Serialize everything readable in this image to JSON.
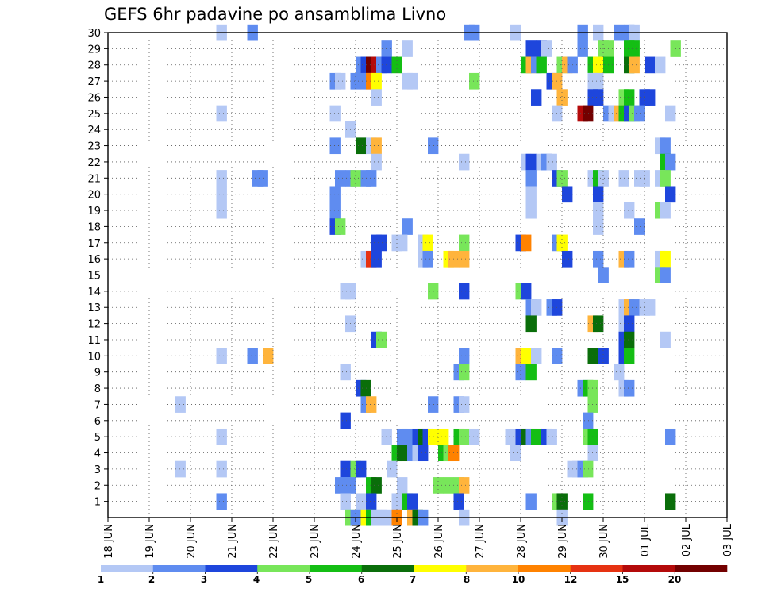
{
  "chart_data": {
    "type": "heatmap",
    "title": "GEFS 6hr padavine po ansamblima Livno",
    "xlabel": "",
    "ylabel": "",
    "x_tick_labels": [
      "18 JUN",
      "19 JUN",
      "20 JUN",
      "21 JUN",
      "22 JUN",
      "23 JUN",
      "24 JUN",
      "25 JUN",
      "26 JUN",
      "27 JUN",
      "28 JUN",
      "29 JUN",
      "30 JUN",
      "01 JUL",
      "02 JUL",
      "03 JUL"
    ],
    "y_tick_labels": [
      "1",
      "2",
      "3",
      "4",
      "5",
      "6",
      "7",
      "8",
      "9",
      "10",
      "11",
      "12",
      "13",
      "14",
      "15",
      "16",
      "17",
      "18",
      "19",
      "20",
      "21",
      "22",
      "23",
      "24",
      "25",
      "26",
      "27",
      "28",
      "29",
      "30"
    ],
    "xlim": [
      "18 JUN",
      "03 JUL"
    ],
    "ylim": [
      0,
      30
    ],
    "grid": true,
    "colorbar_levels": [
      "1",
      "2",
      "3",
      "4",
      "5",
      "6",
      "7",
      "8",
      "10",
      "12",
      "15",
      "20"
    ],
    "colorbar_colors": [
      "#b4c8f5",
      "#5f8cf0",
      "#1e46dc",
      "#78e65a",
      "#14be14",
      "#0a6e0a",
      "#ffff00",
      "#ffb43c",
      "#ff8200",
      "#e63212",
      "#b40a0a",
      "#730000"
    ],
    "cell_level_colors": {
      "1": "#b4c8f5",
      "2": "#5f8cf0",
      "3": "#1e46dc",
      "4": "#78e65a",
      "5": "#14be14",
      "6": "#0a6e0a",
      "7": "#ffff00",
      "8": "#ffb43c",
      "10": "#ff8200",
      "12": "#e63212",
      "15": "#b40a0a",
      "20": "#730000"
    },
    "cells": [
      [
        10.5,
        30,
        1
      ],
      [
        13.5,
        30,
        2
      ],
      [
        34.5,
        30,
        2
      ],
      [
        35,
        30,
        2
      ],
      [
        39,
        30,
        1
      ],
      [
        45.5,
        30,
        2
      ],
      [
        47,
        30,
        1
      ],
      [
        49,
        30,
        2
      ],
      [
        50,
        30,
        2
      ],
      [
        50.5,
        30,
        1
      ],
      [
        26.5,
        29,
        2
      ],
      [
        28.5,
        29,
        1
      ],
      [
        40.5,
        29,
        3
      ],
      [
        41.5,
        29,
        3
      ],
      [
        42,
        29,
        1
      ],
      [
        45.5,
        29,
        2
      ],
      [
        47.5,
        29,
        4
      ],
      [
        48,
        29,
        4
      ],
      [
        50,
        29,
        5
      ],
      [
        50.5,
        29,
        5
      ],
      [
        54.5,
        29,
        4
      ],
      [
        24,
        28,
        2
      ],
      [
        24.5,
        28,
        3
      ],
      [
        25,
        28,
        20
      ],
      [
        25.5,
        28,
        15
      ],
      [
        26,
        28,
        2
      ],
      [
        26.5,
        28,
        3
      ],
      [
        27.5,
        28,
        5
      ],
      [
        40,
        28,
        5
      ],
      [
        40.5,
        28,
        8
      ],
      [
        41,
        28,
        2
      ],
      [
        41.5,
        28,
        5
      ],
      [
        43.5,
        28,
        4
      ],
      [
        44,
        28,
        8
      ],
      [
        44.5,
        28,
        2
      ],
      [
        46.5,
        28,
        5
      ],
      [
        47,
        28,
        7
      ],
      [
        48,
        28,
        5
      ],
      [
        50,
        28,
        6
      ],
      [
        50.5,
        28,
        8
      ],
      [
        52,
        28,
        3
      ],
      [
        53,
        28,
        1
      ],
      [
        21.5,
        27,
        2
      ],
      [
        22,
        27,
        1
      ],
      [
        23.5,
        27,
        2
      ],
      [
        24.5,
        27,
        2
      ],
      [
        25,
        27,
        10
      ],
      [
        25.5,
        27,
        7
      ],
      [
        28.5,
        27,
        1
      ],
      [
        29,
        27,
        1
      ],
      [
        35,
        27,
        4
      ],
      [
        42.5,
        27,
        3
      ],
      [
        43,
        27,
        8
      ],
      [
        46.5,
        27,
        1
      ],
      [
        47,
        27,
        1
      ],
      [
        25.5,
        26,
        1
      ],
      [
        41,
        26,
        3
      ],
      [
        43.5,
        26,
        8
      ],
      [
        46.5,
        26,
        3
      ],
      [
        47,
        26,
        3
      ],
      [
        49.5,
        26,
        4
      ],
      [
        50,
        26,
        5
      ],
      [
        51.5,
        26,
        3
      ],
      [
        52,
        26,
        3
      ],
      [
        10.5,
        25,
        1
      ],
      [
        21.5,
        25,
        1
      ],
      [
        43,
        25,
        1
      ],
      [
        45.5,
        25,
        15
      ],
      [
        46,
        25,
        20
      ],
      [
        48,
        25,
        2
      ],
      [
        48.5,
        25,
        1
      ],
      [
        49,
        25,
        8
      ],
      [
        49.5,
        25,
        5
      ],
      [
        50,
        25,
        3
      ],
      [
        50.5,
        25,
        4
      ],
      [
        51,
        25,
        2
      ],
      [
        54,
        25,
        1
      ],
      [
        23,
        24,
        1
      ],
      [
        21.5,
        23,
        2
      ],
      [
        24,
        23,
        6
      ],
      [
        25,
        23,
        1
      ],
      [
        25.5,
        23,
        8
      ],
      [
        31,
        23,
        2
      ],
      [
        53,
        23,
        1
      ],
      [
        53.5,
        23,
        2
      ],
      [
        25.5,
        22,
        1
      ],
      [
        34,
        22,
        1
      ],
      [
        40,
        22,
        1
      ],
      [
        40.5,
        22,
        3
      ],
      [
        41.5,
        22,
        1
      ],
      [
        42,
        22,
        2
      ],
      [
        42.5,
        22,
        1
      ],
      [
        53.5,
        22,
        5
      ],
      [
        54,
        22,
        2
      ],
      [
        10.5,
        21,
        1
      ],
      [
        14,
        21,
        2
      ],
      [
        14.5,
        21,
        2
      ],
      [
        22,
        21,
        2
      ],
      [
        23,
        21,
        2
      ],
      [
        23.5,
        21,
        4
      ],
      [
        24.5,
        21,
        2
      ],
      [
        25,
        21,
        2
      ],
      [
        40.5,
        21,
        2
      ],
      [
        43,
        21,
        3
      ],
      [
        43.5,
        21,
        4
      ],
      [
        46.5,
        21,
        1
      ],
      [
        47,
        21,
        5
      ],
      [
        47.5,
        21,
        1
      ],
      [
        49.5,
        21,
        1
      ],
      [
        51,
        21,
        1
      ],
      [
        51.5,
        21,
        1
      ],
      [
        53,
        21,
        1
      ],
      [
        53.5,
        21,
        4
      ],
      [
        10.5,
        20,
        1
      ],
      [
        21.5,
        20,
        2
      ],
      [
        40.5,
        20,
        1
      ],
      [
        44,
        20,
        3
      ],
      [
        47,
        20,
        3
      ],
      [
        54,
        20,
        3
      ],
      [
        10.5,
        19,
        1
      ],
      [
        21.5,
        19,
        2
      ],
      [
        40.5,
        19,
        1
      ],
      [
        47,
        19,
        1
      ],
      [
        50,
        19,
        1
      ],
      [
        53,
        19,
        4
      ],
      [
        53.5,
        19,
        1
      ],
      [
        21.5,
        18,
        3
      ],
      [
        22,
        18,
        4
      ],
      [
        28.5,
        18,
        2
      ],
      [
        47,
        18,
        1
      ],
      [
        51,
        18,
        2
      ],
      [
        25.5,
        17,
        3
      ],
      [
        26,
        17,
        3
      ],
      [
        27.5,
        17,
        1
      ],
      [
        28,
        17,
        1
      ],
      [
        30,
        17,
        1
      ],
      [
        30.5,
        17,
        7
      ],
      [
        34,
        17,
        4
      ],
      [
        39.5,
        17,
        3
      ],
      [
        40,
        17,
        10
      ],
      [
        43,
        17,
        2
      ],
      [
        43.5,
        17,
        7
      ],
      [
        24.5,
        16,
        1
      ],
      [
        25,
        16,
        12
      ],
      [
        25.5,
        16,
        3
      ],
      [
        30,
        16,
        1
      ],
      [
        30.5,
        16,
        2
      ],
      [
        32.5,
        16,
        7
      ],
      [
        33,
        16,
        8
      ],
      [
        34,
        16,
        8
      ],
      [
        44,
        16,
        3
      ],
      [
        47,
        16,
        2
      ],
      [
        49.5,
        16,
        8
      ],
      [
        50,
        16,
        2
      ],
      [
        53,
        16,
        1
      ],
      [
        53.5,
        16,
        7
      ],
      [
        47.5,
        15,
        2
      ],
      [
        53,
        15,
        4
      ],
      [
        53.5,
        15,
        2
      ],
      [
        22.5,
        14,
        1
      ],
      [
        23,
        14,
        1
      ],
      [
        31,
        14,
        4
      ],
      [
        34,
        14,
        3
      ],
      [
        39.5,
        14,
        4
      ],
      [
        40,
        14,
        3
      ],
      [
        40.5,
        13,
        2
      ],
      [
        41,
        13,
        1
      ],
      [
        42.5,
        13,
        2
      ],
      [
        43,
        13,
        3
      ],
      [
        49.5,
        13,
        1
      ],
      [
        50,
        13,
        8
      ],
      [
        50.5,
        13,
        2
      ],
      [
        51.5,
        13,
        1
      ],
      [
        52,
        13,
        1
      ],
      [
        23,
        12,
        1
      ],
      [
        40.5,
        12,
        6
      ],
      [
        46.5,
        12,
        8
      ],
      [
        47,
        12,
        6
      ],
      [
        49.5,
        12,
        1
      ],
      [
        50,
        12,
        3
      ],
      [
        25.5,
        11,
        3
      ],
      [
        26,
        11,
        4
      ],
      [
        49.5,
        11,
        3
      ],
      [
        50,
        11,
        6
      ],
      [
        53.5,
        11,
        1
      ],
      [
        10.5,
        10,
        1
      ],
      [
        13.5,
        10,
        2
      ],
      [
        15,
        10,
        8
      ],
      [
        34,
        10,
        2
      ],
      [
        39.5,
        10,
        8
      ],
      [
        40,
        10,
        7
      ],
      [
        41,
        10,
        1
      ],
      [
        43,
        10,
        2
      ],
      [
        46.5,
        10,
        6
      ],
      [
        47.5,
        10,
        3
      ],
      [
        49.5,
        10,
        3
      ],
      [
        50,
        10,
        5
      ],
      [
        22.5,
        9,
        1
      ],
      [
        33.5,
        9,
        2
      ],
      [
        34,
        9,
        4
      ],
      [
        39.5,
        9,
        2
      ],
      [
        40.5,
        9,
        5
      ],
      [
        49,
        9,
        1
      ],
      [
        24,
        8,
        3
      ],
      [
        24.5,
        8,
        6
      ],
      [
        45.5,
        8,
        2
      ],
      [
        46,
        8,
        5
      ],
      [
        46.5,
        8,
        4
      ],
      [
        49.5,
        8,
        1
      ],
      [
        50,
        8,
        2
      ],
      [
        6.5,
        7,
        1
      ],
      [
        24.5,
        7,
        2
      ],
      [
        25,
        7,
        8
      ],
      [
        31,
        7,
        2
      ],
      [
        33.5,
        7,
        2
      ],
      [
        34,
        7,
        1
      ],
      [
        46.5,
        7,
        4
      ],
      [
        22.5,
        6,
        3
      ],
      [
        46,
        6,
        2
      ],
      [
        10.5,
        5,
        1
      ],
      [
        26.5,
        5,
        1
      ],
      [
        28,
        5,
        2
      ],
      [
        28.5,
        5,
        2
      ],
      [
        29.5,
        5,
        3
      ],
      [
        30,
        5,
        6
      ],
      [
        30.5,
        5,
        3
      ],
      [
        31,
        5,
        7
      ],
      [
        32,
        5,
        7
      ],
      [
        33.5,
        5,
        5
      ],
      [
        34,
        5,
        4
      ],
      [
        35,
        5,
        1
      ],
      [
        38.5,
        5,
        1
      ],
      [
        39.5,
        5,
        3
      ],
      [
        40,
        5,
        6
      ],
      [
        40.5,
        5,
        2
      ],
      [
        41,
        5,
        5
      ],
      [
        42,
        5,
        3
      ],
      [
        42.5,
        5,
        1
      ],
      [
        46,
        5,
        4
      ],
      [
        46.5,
        5,
        5
      ],
      [
        54,
        5,
        2
      ],
      [
        27.5,
        4,
        5
      ],
      [
        28,
        4,
        6
      ],
      [
        29,
        4,
        2
      ],
      [
        29.5,
        4,
        1
      ],
      [
        30,
        4,
        3
      ],
      [
        32,
        4,
        5
      ],
      [
        32.5,
        4,
        4
      ],
      [
        33,
        4,
        10
      ],
      [
        39,
        4,
        1
      ],
      [
        46.5,
        4,
        1
      ],
      [
        6.5,
        3,
        1
      ],
      [
        10.5,
        3,
        1
      ],
      [
        22.5,
        3,
        3
      ],
      [
        23.5,
        3,
        4
      ],
      [
        24,
        3,
        3
      ],
      [
        27,
        3,
        1
      ],
      [
        44.5,
        3,
        1
      ],
      [
        45,
        3,
        1
      ],
      [
        45.5,
        3,
        2
      ],
      [
        46,
        3,
        4
      ],
      [
        22,
        2,
        2
      ],
      [
        22.5,
        2,
        2
      ],
      [
        23,
        2,
        2
      ],
      [
        25,
        2,
        5
      ],
      [
        25.5,
        2,
        6
      ],
      [
        28,
        2,
        1
      ],
      [
        31.5,
        2,
        4
      ],
      [
        32.5,
        2,
        4
      ],
      [
        33.5,
        2,
        4
      ],
      [
        34,
        2,
        8
      ],
      [
        10.5,
        1,
        2
      ],
      [
        22.5,
        1,
        1
      ],
      [
        24,
        1,
        1
      ],
      [
        25,
        1,
        3
      ],
      [
        27.5,
        1,
        1
      ],
      [
        28.5,
        1,
        5
      ],
      [
        29,
        1,
        3
      ],
      [
        33.5,
        1,
        3
      ],
      [
        40.5,
        1,
        2
      ],
      [
        43,
        1,
        4
      ],
      [
        43.5,
        1,
        6
      ],
      [
        46,
        1,
        5
      ],
      [
        54,
        1,
        6
      ],
      [
        23,
        0,
        4
      ],
      [
        23.5,
        0,
        2
      ],
      [
        24.5,
        0,
        7
      ],
      [
        25,
        0,
        5
      ],
      [
        25.5,
        0,
        1
      ],
      [
        26,
        0,
        1
      ],
      [
        26.5,
        0,
        1
      ],
      [
        27.5,
        0,
        10
      ],
      [
        29,
        0,
        8
      ],
      [
        29.5,
        0,
        6
      ],
      [
        30,
        0,
        2
      ],
      [
        34,
        0,
        1
      ],
      [
        43.5,
        0,
        1
      ]
    ]
  }
}
